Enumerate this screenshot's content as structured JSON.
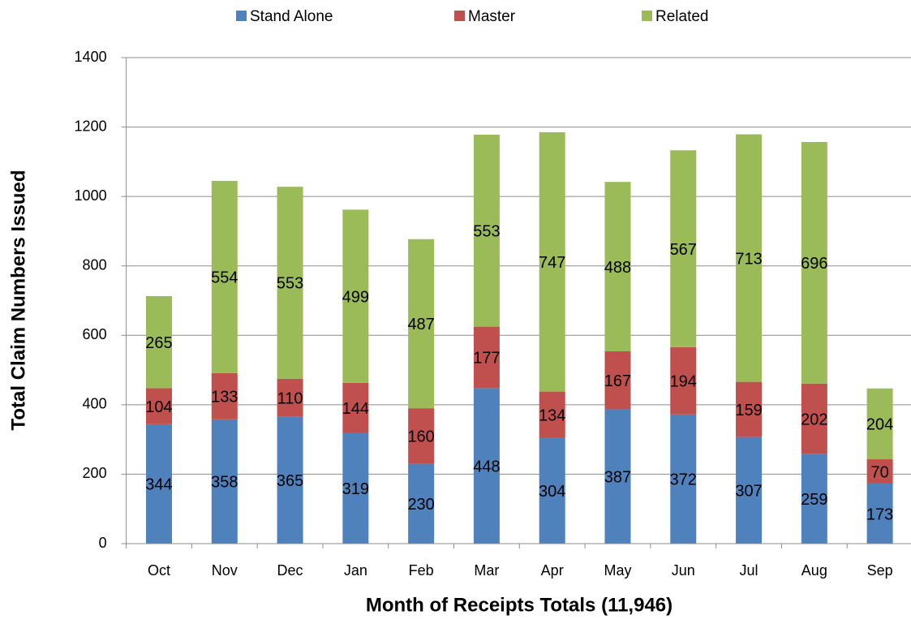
{
  "chart_data": {
    "type": "bar",
    "stacked": true,
    "x_label": "Month of Receipts Totals (11,946)",
    "y_label": "Total Claim Numbers Issued",
    "categories": [
      "Oct",
      "Nov",
      "Dec",
      "Jan",
      "Feb",
      "Mar",
      "Apr",
      "May",
      "Jun",
      "Jul",
      "Aug",
      "Sep"
    ],
    "series": [
      {
        "name": "Stand Alone",
        "color": "#4f81bd",
        "values": [
          344,
          358,
          365,
          319,
          230,
          448,
          304,
          387,
          372,
          307,
          259,
          173
        ]
      },
      {
        "name": "Master",
        "color": "#c0504d",
        "values": [
          104,
          133,
          110,
          144,
          160,
          177,
          134,
          167,
          194,
          159,
          202,
          70
        ]
      },
      {
        "name": "Related",
        "color": "#9bbb59",
        "values": [
          265,
          554,
          553,
          499,
          487,
          553,
          747,
          488,
          567,
          713,
          696,
          204
        ]
      }
    ],
    "ylim": [
      0,
      1400
    ],
    "yticks": [
      0,
      200,
      400,
      600,
      800,
      1000,
      1200,
      1400
    ],
    "grid": true
  }
}
